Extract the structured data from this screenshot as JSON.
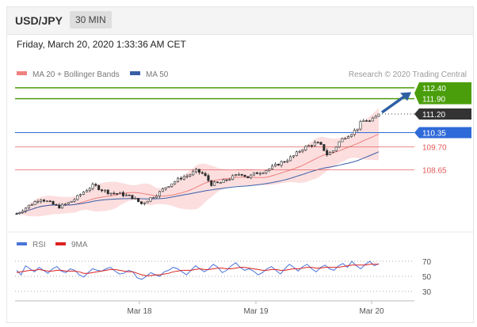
{
  "header": {
    "pair": "USD/JPY",
    "timeframe": "30 MIN"
  },
  "timestamp": "Friday, March 20, 2020 1:33:36 AM CET",
  "legend": {
    "bollinger": "MA 20 + Bollinger Bands",
    "ma50": "MA 50",
    "credit": "Research © 2020 Trading Central"
  },
  "rsi_legend": {
    "rsi": "RSI",
    "nine_ma": "9MA"
  },
  "colors": {
    "candle": "#2b2b2b",
    "bollinger": "#f08080",
    "band_fill": "#fbd3d3",
    "ma50": "#3a5ea8",
    "target": "#4a9e0b",
    "pivot": "#2e6ad8",
    "support": "#e35a5a",
    "current": "#333333",
    "arrow": "#2e5fa3",
    "rsi": "#4a74d9",
    "nine_ma": "#dd2222"
  },
  "chart_data": [
    {
      "type": "candlestick",
      "symbol": "USD/JPY",
      "interval": "30 MIN",
      "x_ticks": [
        "Mar 18",
        "Mar 19",
        "Mar 20"
      ],
      "ylim": [
        106.5,
        112.8
      ],
      "levels": [
        {
          "label": "112.40",
          "value": 112.4,
          "kind": "target"
        },
        {
          "label": "111.90",
          "value": 111.9,
          "kind": "target"
        },
        {
          "label": "111.20",
          "value": 111.2,
          "kind": "current"
        },
        {
          "label": "110.35",
          "value": 110.35,
          "kind": "pivot"
        },
        {
          "label": "109.70",
          "value": 109.7,
          "kind": "support"
        },
        {
          "label": "108.65",
          "value": 108.65,
          "kind": "support"
        }
      ],
      "series": [
        {
          "name": "MA 20 + Bollinger Bands"
        },
        {
          "name": "MA 50"
        }
      ],
      "close_path": [
        [
          0,
          106.65
        ],
        [
          8,
          107.0
        ],
        [
          16,
          107.35
        ],
        [
          22,
          107.15
        ],
        [
          28,
          106.95
        ],
        [
          34,
          107.1
        ],
        [
          40,
          107.35
        ],
        [
          46,
          107.7
        ],
        [
          52,
          107.95
        ],
        [
          57,
          107.75
        ],
        [
          63,
          107.6
        ],
        [
          70,
          107.55
        ],
        [
          78,
          107.4
        ],
        [
          84,
          107.1
        ],
        [
          90,
          107.35
        ],
        [
          96,
          107.6
        ],
        [
          101,
          107.9
        ],
        [
          106,
          108.1
        ],
        [
          111,
          108.3
        ],
        [
          116,
          108.4
        ],
        [
          121,
          108.6
        ],
        [
          126,
          108.45
        ],
        [
          131,
          108.0
        ],
        [
          137,
          108.05
        ],
        [
          145,
          108.3
        ],
        [
          151,
          108.5
        ],
        [
          156,
          108.3
        ],
        [
          161,
          108.5
        ],
        [
          167,
          108.6
        ],
        [
          172,
          108.75
        ],
        [
          177,
          108.95
        ],
        [
          182,
          109.1
        ],
        [
          187,
          109.3
        ],
        [
          192,
          109.6
        ],
        [
          197,
          109.75
        ],
        [
          202,
          109.9
        ],
        [
          206,
          109.7
        ],
        [
          209,
          109.35
        ],
        [
          213,
          109.5
        ],
        [
          217,
          109.9
        ],
        [
          221,
          110.15
        ],
        [
          225,
          110.3
        ],
        [
          229,
          110.5
        ],
        [
          232,
          110.8
        ],
        [
          235,
          110.95
        ],
        [
          238,
          110.85
        ],
        [
          241,
          111.0
        ],
        [
          244,
          111.2
        ]
      ],
      "candle_count": 120
    },
    {
      "type": "line",
      "indicator": "RSI",
      "yticks": [
        70,
        50,
        30
      ],
      "ylim": [
        25,
        75
      ],
      "series": [
        {
          "name": "RSI",
          "values": [
            58,
            52,
            64,
            60,
            56,
            62,
            58,
            54,
            60,
            63,
            57,
            55,
            60,
            58,
            52,
            49,
            55,
            60,
            58,
            57,
            60,
            62,
            57,
            53,
            54,
            58,
            56,
            48,
            46,
            50,
            55,
            52,
            50,
            56,
            58,
            62,
            60,
            56,
            52,
            58,
            64,
            60,
            56,
            60,
            66,
            62,
            55,
            58,
            64,
            68,
            62,
            58,
            60,
            57,
            52,
            55,
            60,
            63,
            58,
            53,
            60,
            66,
            62,
            57,
            63,
            66,
            60,
            56,
            62,
            65,
            60,
            58,
            64,
            67,
            62,
            70,
            64,
            60,
            66,
            70,
            64,
            67
          ]
        },
        {
          "name": "9MA",
          "values": [
            55,
            56,
            57,
            58,
            58,
            59,
            58,
            57,
            57,
            58,
            58,
            57,
            57,
            57,
            56,
            54,
            54,
            55,
            56,
            57,
            58,
            59,
            59,
            58,
            57,
            56,
            56,
            54,
            52,
            51,
            51,
            52,
            52,
            53,
            54,
            56,
            57,
            58,
            58,
            58,
            59,
            60,
            59,
            59,
            60,
            61,
            61,
            60,
            60,
            61,
            62,
            62,
            61,
            60,
            59,
            58,
            58,
            59,
            59,
            58,
            58,
            59,
            60,
            60,
            61,
            62,
            62,
            61,
            61,
            62,
            62,
            62,
            62,
            63,
            64,
            65,
            65,
            65,
            65,
            66,
            66,
            66
          ]
        }
      ]
    }
  ]
}
